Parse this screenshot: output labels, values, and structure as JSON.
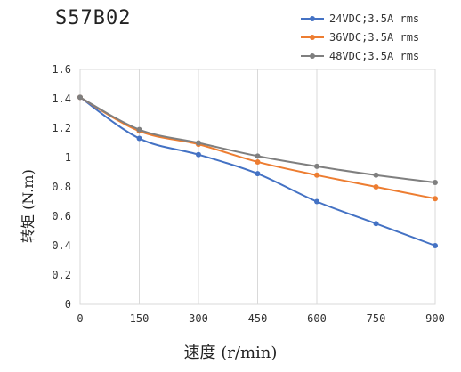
{
  "chart_data": {
    "type": "line",
    "title": "S57B02",
    "xlabel": "速度 (r/min)",
    "ylabel": "转矩 (N.m)",
    "x": [
      0,
      150,
      300,
      450,
      600,
      750,
      900
    ],
    "xticks": [
      "0",
      "150",
      "300",
      "450",
      "600",
      "750",
      "900"
    ],
    "yticks": [
      "0",
      "0.2",
      "0.4",
      "0.6",
      "0.8",
      "1",
      "1.2",
      "1.4",
      "1.6"
    ],
    "xlim": [
      0,
      900
    ],
    "ylim": [
      0,
      1.6
    ],
    "grid": "vertical",
    "legend": "top-right",
    "series": [
      {
        "name": "24VDC;3.5A rms",
        "color": "#4472c4",
        "values": [
          1.41,
          1.13,
          1.02,
          0.89,
          0.7,
          0.55,
          0.4
        ]
      },
      {
        "name": "36VDC;3.5A rms",
        "color": "#ed7d31",
        "values": [
          1.41,
          1.18,
          1.09,
          0.97,
          0.88,
          0.8,
          0.72
        ]
      },
      {
        "name": "48VDC;3.5A rms",
        "color": "#7f7f7f",
        "values": [
          1.41,
          1.19,
          1.1,
          1.01,
          0.94,
          0.88,
          0.83
        ]
      }
    ]
  }
}
